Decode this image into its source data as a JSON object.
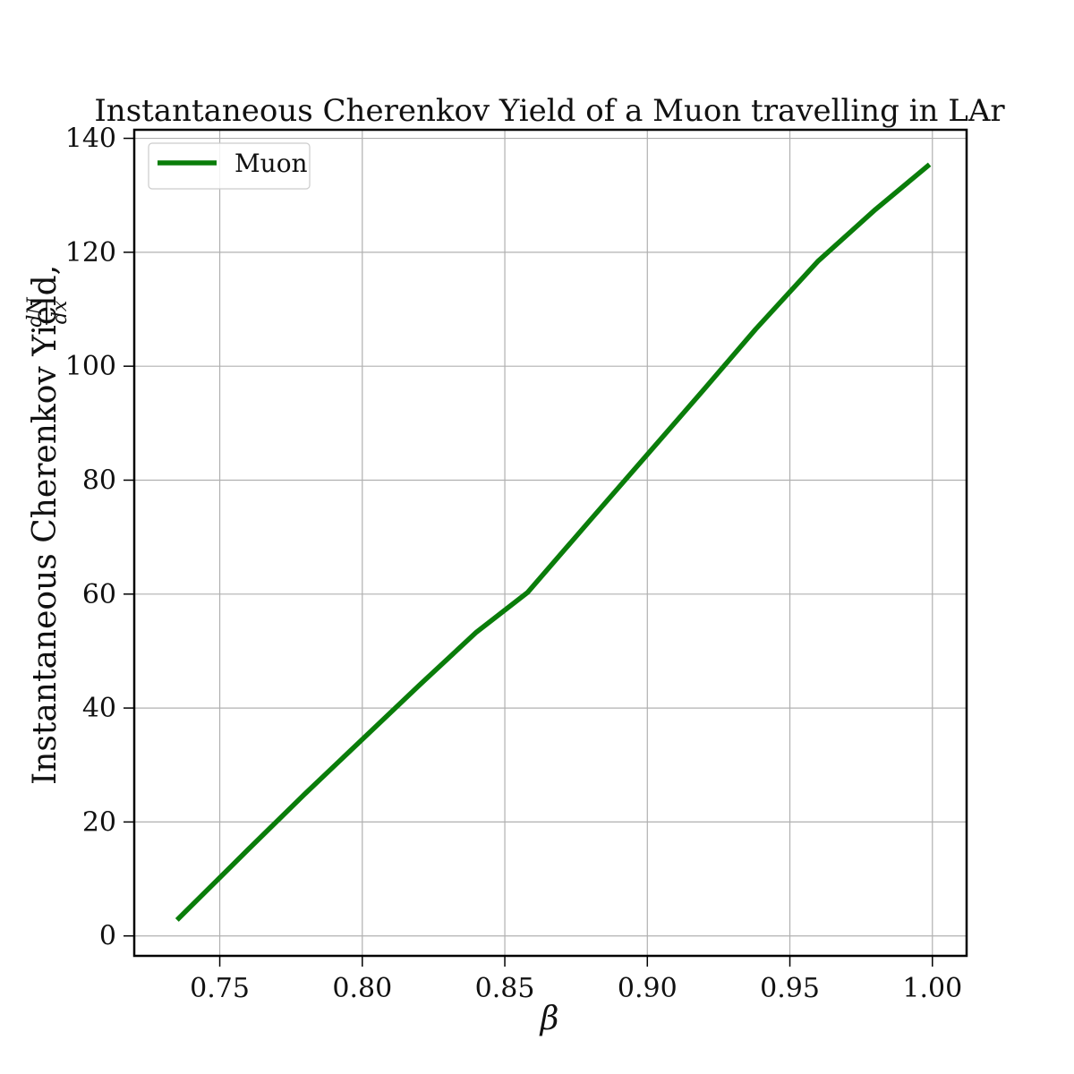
{
  "chart_data": {
    "type": "line",
    "title": "Instantaneous Cherenkov Yield of a Muon travelling in LAr",
    "xlabel": "β",
    "ylabel": "Instantaneous Cherenkov Yield,",
    "ylabel_math_numerator": "dN",
    "ylabel_math_denominator": "dx",
    "xlim": [
      0.72,
      1.012
    ],
    "ylim": [
      -3.5,
      141.5
    ],
    "x_ticks": [
      0.75,
      0.8,
      0.85,
      0.9,
      0.95,
      1.0
    ],
    "x_tick_labels": [
      "0.75",
      "0.80",
      "0.85",
      "0.90",
      "0.95",
      "1.00"
    ],
    "y_ticks": [
      0,
      20,
      40,
      60,
      80,
      100,
      120,
      140
    ],
    "y_tick_labels": [
      "0",
      "20",
      "40",
      "60",
      "80",
      "100",
      "120",
      "140"
    ],
    "grid": true,
    "legend_position": "top-left",
    "series": [
      {
        "name": "Muon",
        "color": "#0a7d0a",
        "x": [
          0.735,
          0.76,
          0.78,
          0.8,
          0.82,
          0.84,
          0.858,
          0.88,
          0.9,
          0.92,
          0.938,
          0.96,
          0.98,
          0.999
        ],
        "y": [
          2.8,
          15.2,
          25.0,
          34.5,
          44.0,
          53.3,
          60.3,
          73.0,
          84.5,
          96.0,
          106.5,
          118.5,
          127.5,
          135.4
        ]
      }
    ]
  }
}
